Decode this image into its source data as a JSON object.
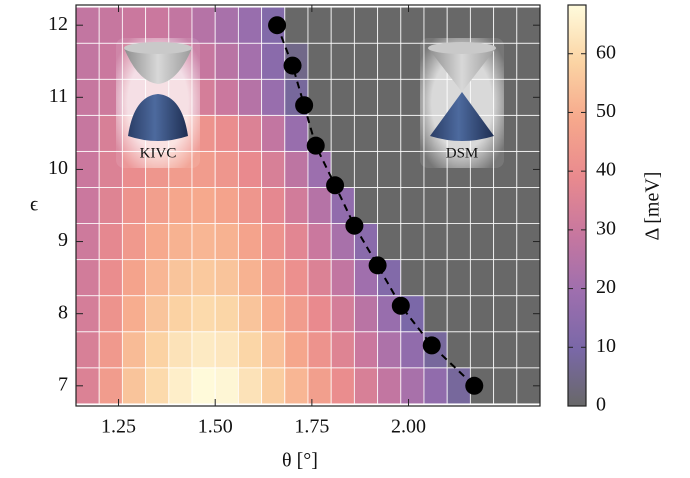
{
  "chart_data": {
    "type": "heatmap",
    "x": [
      1.17,
      1.23,
      1.29,
      1.35,
      1.41,
      1.47,
      1.53,
      1.59,
      1.65,
      1.71,
      1.77,
      1.83,
      1.89,
      1.95,
      2.01,
      2.07,
      2.13,
      2.19,
      2.25,
      2.31
    ],
    "y": [
      7,
      7.5,
      8,
      8.5,
      9,
      9.5,
      10,
      10.5,
      11,
      11.5,
      12
    ],
    "z": [
      [
        35,
        45,
        55,
        60,
        65,
        68,
        67,
        62,
        57,
        52,
        46,
        40,
        34,
        28,
        22,
        16,
        8,
        0,
        0,
        0
      ],
      [
        34,
        44,
        53,
        58,
        62,
        64,
        63,
        59,
        54,
        48,
        42,
        36,
        30,
        23,
        16,
        8,
        0,
        0,
        0,
        0
      ],
      [
        33,
        42,
        50,
        55,
        58,
        60,
        59,
        55,
        50,
        45,
        39,
        33,
        26,
        18,
        10,
        0,
        0,
        0,
        0,
        0
      ],
      [
        32,
        40,
        47,
        52,
        55,
        56,
        55,
        51,
        46,
        41,
        35,
        28,
        20,
        12,
        0,
        0,
        0,
        0,
        0,
        0
      ],
      [
        31,
        38,
        44,
        49,
        51,
        52,
        51,
        47,
        42,
        37,
        30,
        22,
        14,
        0,
        0,
        0,
        0,
        0,
        0,
        0
      ],
      [
        30,
        36,
        42,
        46,
        48,
        49,
        47,
        43,
        38,
        32,
        25,
        16,
        0,
        0,
        0,
        0,
        0,
        0,
        0,
        0
      ],
      [
        30,
        35,
        40,
        43,
        45,
        45,
        43,
        39,
        34,
        27,
        19,
        0,
        0,
        0,
        0,
        0,
        0,
        0,
        0,
        0
      ],
      [
        29,
        34,
        38,
        41,
        42,
        42,
        40,
        35,
        28,
        18,
        0,
        0,
        0,
        0,
        0,
        0,
        0,
        0,
        0,
        0
      ],
      [
        29,
        31,
        34,
        35,
        35,
        33,
        30,
        25,
        18,
        8,
        0,
        0,
        0,
        0,
        0,
        0,
        0,
        0,
        0,
        0
      ],
      [
        28,
        30,
        32,
        32,
        31,
        29,
        26,
        21,
        14,
        5,
        0,
        0,
        0,
        0,
        0,
        0,
        0,
        0,
        0,
        0
      ],
      [
        28,
        29,
        30,
        30,
        28,
        25,
        22,
        18,
        12,
        0,
        0,
        0,
        0,
        0,
        0,
        0,
        0,
        0,
        0,
        0
      ]
    ],
    "zlim": [
      0,
      68.3
    ],
    "colormap": [
      "#686868",
      "#7a68a8",
      "#9e6fae",
      "#c7779f",
      "#e98a8e",
      "#f6a88c",
      "#fbd4a4",
      "#fffbdc"
    ],
    "xlim": [
      1.14,
      2.34
    ],
    "ylim": [
      6.72,
      12.28
    ],
    "xticks": [
      {
        "value": 1.25,
        "label": "1.25"
      },
      {
        "value": 1.5,
        "label": "1.50"
      },
      {
        "value": 1.75,
        "label": "1.75"
      },
      {
        "value": 2,
        "label": "2.00"
      }
    ],
    "yticks": [
      7,
      8,
      9,
      10,
      11,
      12
    ],
    "xlabel": "θ [°]",
    "ylabel": "ϵ",
    "colorbar": {
      "label": "Δ [meV]",
      "ticks": [
        0,
        10,
        20,
        30,
        40,
        50,
        60
      ]
    },
    "overlay": {
      "type": "scatter",
      "color": "#000000",
      "line": "dashed",
      "x": [
        1.66,
        1.7,
        1.73,
        1.76,
        1.81,
        1.86,
        1.92,
        1.98,
        2.06,
        2.17
      ],
      "y": [
        12,
        11.44,
        10.89,
        10.33,
        9.78,
        9.22,
        8.67,
        8.11,
        7.56,
        7
      ]
    },
    "annotations": [
      "KIVC",
      "DSM"
    ]
  }
}
